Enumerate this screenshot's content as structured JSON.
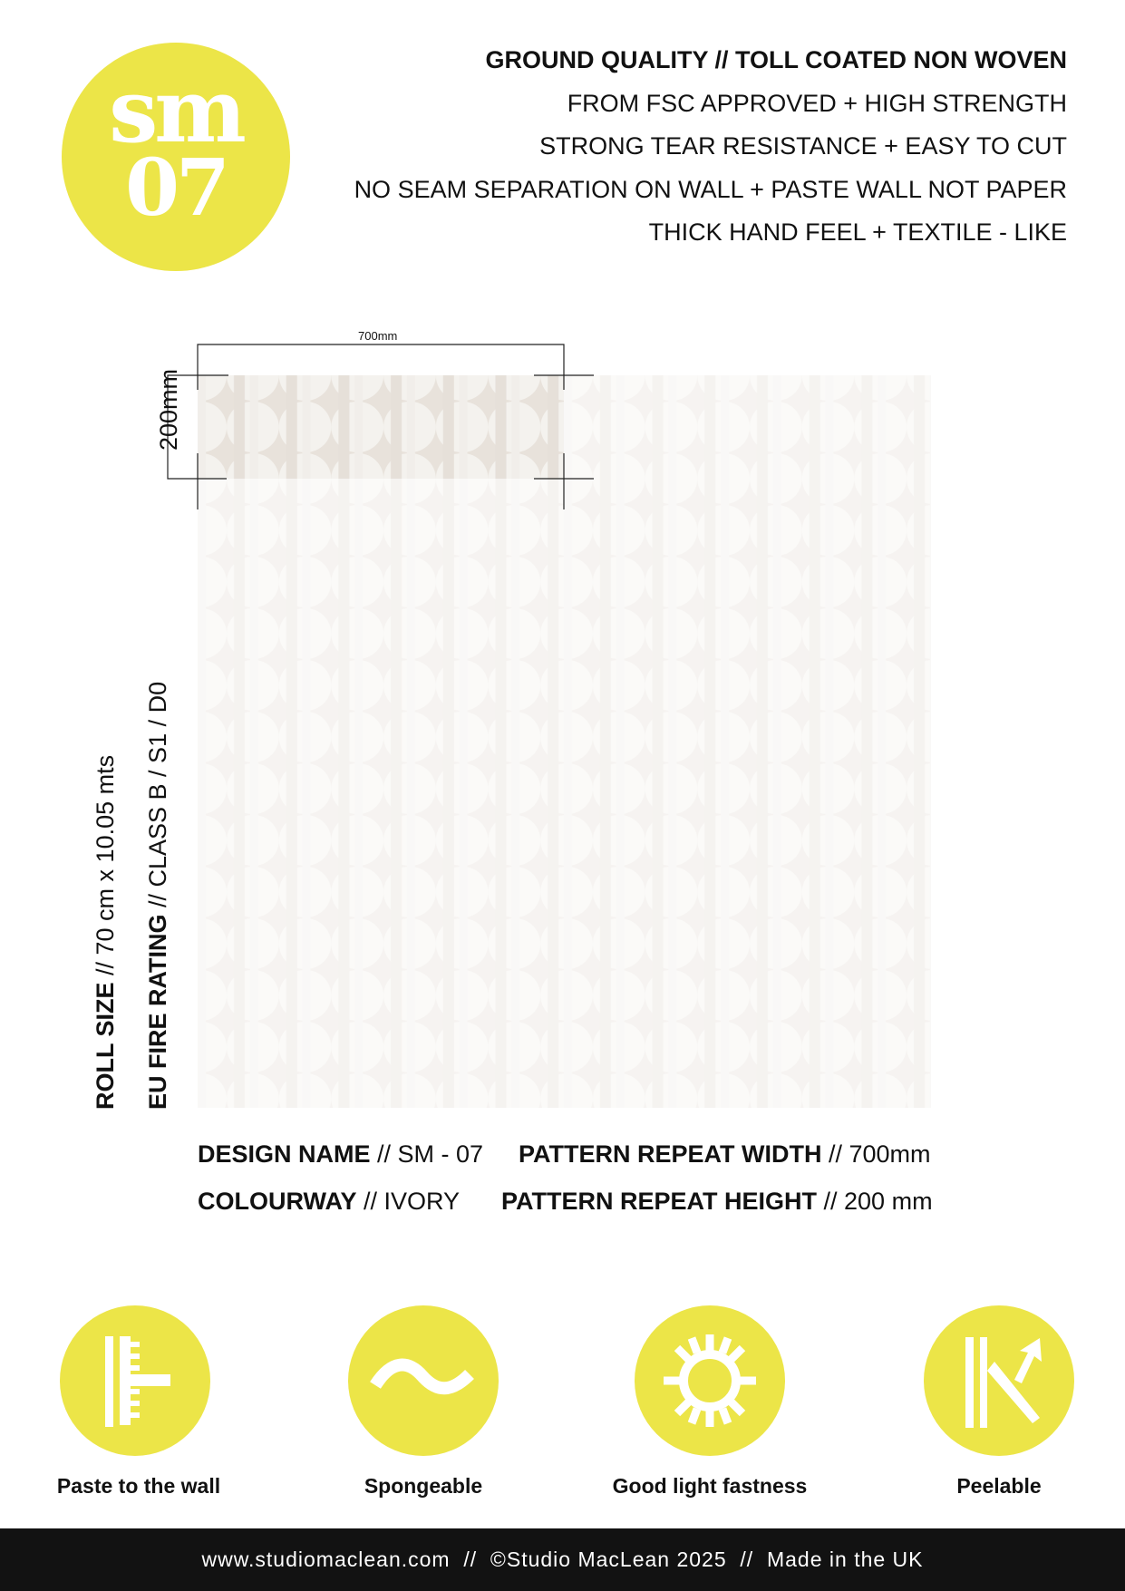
{
  "logo": {
    "line1": "sm",
    "line2": "07",
    "color": "#ece548"
  },
  "header": {
    "lines": [
      "GROUND QUALITY // TOLL COATED NON WOVEN",
      "FROM FSC APPROVED + HIGH STRENGTH",
      "STRONG TEAR RESISTANCE + EASY TO CUT",
      "NO SEAM SEPARATION ON WALL + PASTE WALL NOT PAPER",
      "THICK HAND FEEL + TEXTILE - LIKE"
    ]
  },
  "pattern": {
    "repeat_width_label": "700mm",
    "repeat_height_label": "200mm",
    "colorway_hex": "#e8e2db"
  },
  "side": {
    "roll_size_label": "ROLL SIZE",
    "roll_size_value": " // 70 cm x 10.05 mts",
    "fire_label": "EU FIRE RATING",
    "fire_value": " // CLASS B / S1 / D0"
  },
  "info": {
    "design_name_label": "DESIGN NAME",
    "design_name_value": " // SM - 07",
    "colourway_label": "COLOURWAY",
    "colourway_value": " // IVORY",
    "repeat_width_label": "PATTERN REPEAT WIDTH",
    "repeat_width_value": " // 700mm",
    "repeat_height_label": "PATTERN REPEAT HEIGHT",
    "repeat_height_value": " // 200 mm"
  },
  "features": [
    {
      "icon": "paste-brush-icon",
      "label": "Paste to the wall"
    },
    {
      "icon": "wave-icon",
      "label": "Spongeable"
    },
    {
      "icon": "sun-icon",
      "label": "Good light fastness"
    },
    {
      "icon": "peel-icon",
      "label": "Peelable"
    }
  ],
  "footer": {
    "text": "www.studiomaclean.com  //  ©Studio MacLean 2025  //  Made in the UK"
  }
}
